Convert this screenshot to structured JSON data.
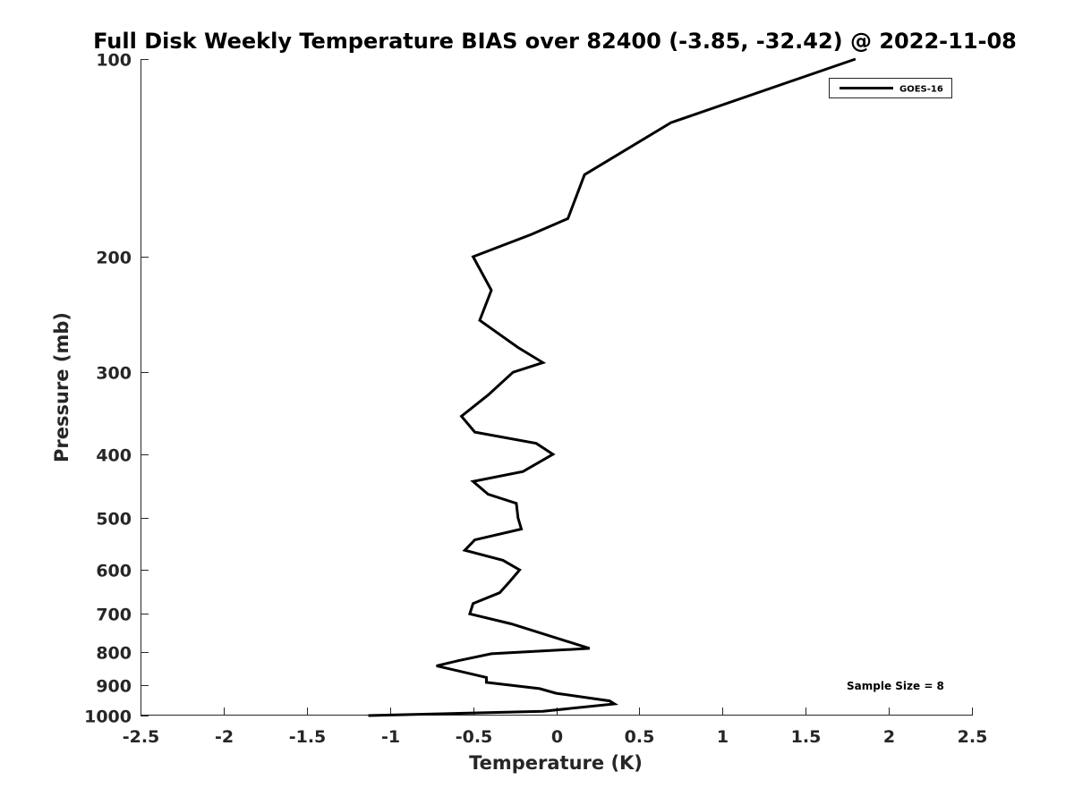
{
  "chart_data": {
    "type": "line",
    "title": "Full Disk Weekly Temperature BIAS over 82400 (-3.85, -32.42) @ 2022-11-08",
    "xlabel": "Temperature (K)",
    "ylabel": "Pressure (mb)",
    "xlim": [
      -2.5,
      2.5
    ],
    "ylim": [
      100,
      1000
    ],
    "yscale": "log",
    "y_reversed": true,
    "grid": false,
    "legend_position": "top-right",
    "x_ticks": [
      -2.5,
      -2,
      -1.5,
      -1,
      -0.5,
      0,
      0.5,
      1,
      1.5,
      2,
      2.5
    ],
    "x_tick_labels": [
      "-2.5",
      "-2",
      "-1.5",
      "-1",
      "-0.5",
      "0",
      "0.5",
      "1",
      "1.5",
      "2",
      "2.5"
    ],
    "y_ticks": [
      100,
      200,
      300,
      400,
      500,
      600,
      700,
      800,
      900,
      1000
    ],
    "y_tick_labels": [
      "100",
      "200",
      "300",
      "400",
      "500",
      "600",
      "700",
      "800",
      "900",
      "1000"
    ],
    "series": [
      {
        "name": "GOES-16",
        "color": "#000000",
        "points": [
          {
            "x": 1.8,
            "y": 100
          },
          {
            "x": 0.69,
            "y": 125
          },
          {
            "x": 0.17,
            "y": 150
          },
          {
            "x": 0.07,
            "y": 175
          },
          {
            "x": -0.15,
            "y": 185
          },
          {
            "x": -0.5,
            "y": 200
          },
          {
            "x": -0.39,
            "y": 225
          },
          {
            "x": -0.46,
            "y": 250
          },
          {
            "x": -0.23,
            "y": 275
          },
          {
            "x": -0.08,
            "y": 290
          },
          {
            "x": -0.26,
            "y": 300
          },
          {
            "x": -0.41,
            "y": 325
          },
          {
            "x": -0.57,
            "y": 350
          },
          {
            "x": -0.49,
            "y": 370
          },
          {
            "x": -0.12,
            "y": 385
          },
          {
            "x": -0.02,
            "y": 400
          },
          {
            "x": -0.2,
            "y": 425
          },
          {
            "x": -0.5,
            "y": 440
          },
          {
            "x": -0.41,
            "y": 460
          },
          {
            "x": -0.24,
            "y": 475
          },
          {
            "x": -0.23,
            "y": 500
          },
          {
            "x": -0.21,
            "y": 520
          },
          {
            "x": -0.49,
            "y": 540
          },
          {
            "x": -0.55,
            "y": 560
          },
          {
            "x": -0.32,
            "y": 580
          },
          {
            "x": -0.22,
            "y": 600
          },
          {
            "x": -0.28,
            "y": 625
          },
          {
            "x": -0.34,
            "y": 650
          },
          {
            "x": -0.5,
            "y": 675
          },
          {
            "x": -0.52,
            "y": 700
          },
          {
            "x": -0.27,
            "y": 725
          },
          {
            "x": 0.2,
            "y": 790
          },
          {
            "x": -0.39,
            "y": 805
          },
          {
            "x": -0.59,
            "y": 825
          },
          {
            "x": -0.72,
            "y": 840
          },
          {
            "x": -0.42,
            "y": 875
          },
          {
            "x": -0.42,
            "y": 890
          },
          {
            "x": -0.1,
            "y": 910
          },
          {
            "x": 0.0,
            "y": 925
          },
          {
            "x": 0.32,
            "y": 950
          },
          {
            "x": 0.35,
            "y": 960
          },
          {
            "x": -0.08,
            "y": 985
          },
          {
            "x": -1.13,
            "y": 1000
          }
        ]
      }
    ],
    "annotations": [
      {
        "text": "Sample Size = 8"
      }
    ]
  }
}
